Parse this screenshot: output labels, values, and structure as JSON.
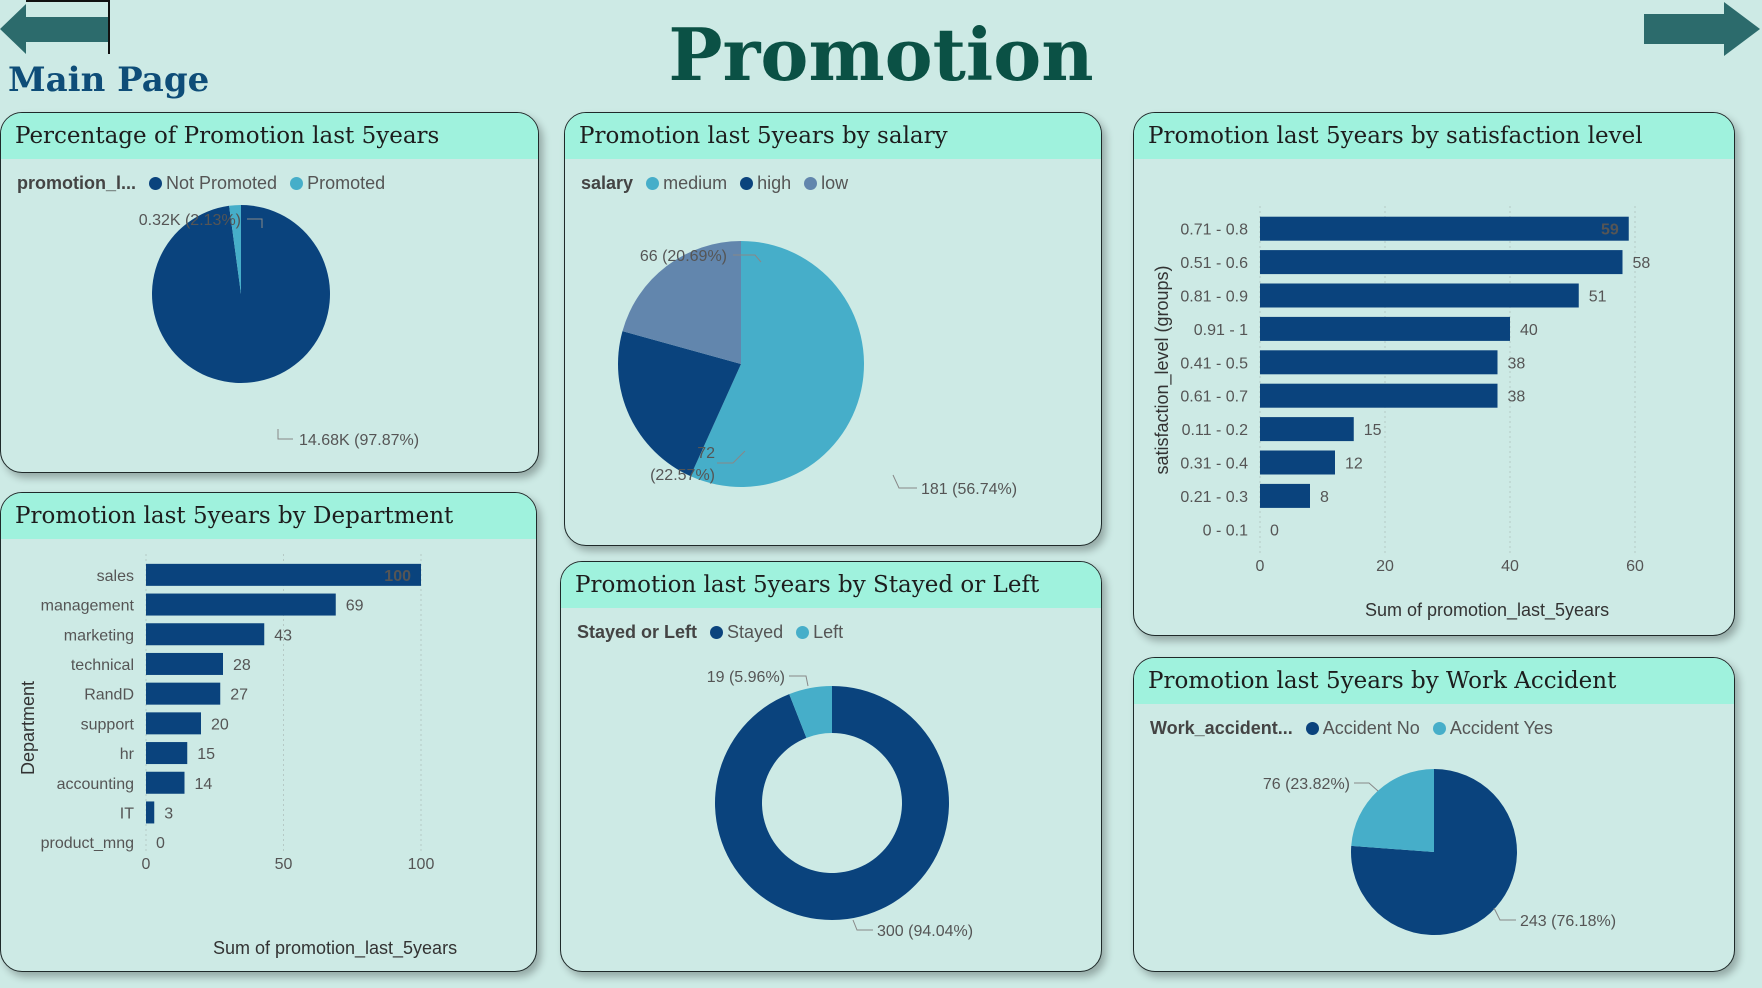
{
  "page": {
    "title": "Promotion",
    "main_link": "Main Page"
  },
  "colors": {
    "dark": "#0a437d",
    "teal": "#46aec9",
    "slate": "#6286ad",
    "header": "#9ff2dd",
    "bg": "#cdeae5"
  },
  "chart_data": [
    {
      "id": "percentage",
      "type": "pie",
      "title": "Percentage of Promotion last 5years",
      "legend_title": "promotion_l...",
      "slices": [
        {
          "name": "Not Promoted",
          "value": 14680,
          "label": "14.68K (97.87%)",
          "color": "#0a437d"
        },
        {
          "name": "Promoted",
          "value": 320,
          "label": "0.32K (2.13%)",
          "color": "#46aec9"
        }
      ]
    },
    {
      "id": "salary",
      "type": "pie",
      "title": "Promotion last 5years by salary",
      "legend_title": "salary",
      "slices": [
        {
          "name": "medium",
          "value": 181,
          "label": "181 (56.74%)",
          "color": "#46aec9"
        },
        {
          "name": "high",
          "value": 72,
          "label": "72 (22.57%)",
          "color": "#0a437d"
        },
        {
          "name": "low",
          "value": 66,
          "label": "66 (20.69%)",
          "color": "#6286ad"
        }
      ]
    },
    {
      "id": "satisfaction",
      "type": "bar",
      "orientation": "horizontal",
      "title": "Promotion last 5years by satisfaction level",
      "xlabel": "Sum of promotion_last_5years",
      "ylabel": "satisfaction_level (groups)",
      "xlim": [
        0,
        60
      ],
      "xticks": [
        0,
        20,
        40,
        60
      ],
      "categories": [
        "0.71 - 0.8",
        "0.51 - 0.6",
        "0.81 - 0.9",
        "0.91 - 1",
        "0.41 - 0.5",
        "0.61 - 0.7",
        "0.11 - 0.2",
        "0.31 - 0.4",
        "0.21 - 0.3",
        "0 - 0.1"
      ],
      "values": [
        59,
        58,
        51,
        40,
        38,
        38,
        15,
        12,
        8,
        0
      ]
    },
    {
      "id": "department",
      "type": "bar",
      "orientation": "horizontal",
      "title": "Promotion last 5years by Department",
      "xlabel": "Sum of promotion_last_5years",
      "ylabel": "Department",
      "xlim": [
        0,
        100
      ],
      "xticks": [
        0,
        50,
        100
      ],
      "categories": [
        "sales",
        "management",
        "marketing",
        "technical",
        "RandD",
        "support",
        "hr",
        "accounting",
        "IT",
        "product_mng"
      ],
      "values": [
        100,
        69,
        43,
        28,
        27,
        20,
        15,
        14,
        3,
        0
      ]
    },
    {
      "id": "stayed",
      "type": "pie",
      "donut": true,
      "title": "Promotion last 5years by Stayed or Left",
      "legend_title": "Stayed or Left",
      "slices": [
        {
          "name": "Stayed",
          "value": 300,
          "label": "300 (94.04%)",
          "color": "#0a437d"
        },
        {
          "name": "Left",
          "value": 19,
          "label": "19 (5.96%)",
          "color": "#46aec9"
        }
      ]
    },
    {
      "id": "accident",
      "type": "pie",
      "title": "Promotion last 5years by Work Accident",
      "legend_title": "Work_accident...",
      "slices": [
        {
          "name": "Accident No",
          "value": 243,
          "label": "243 (76.18%)",
          "color": "#0a437d"
        },
        {
          "name": "Accident Yes",
          "value": 76,
          "label": "76 (23.82%)",
          "color": "#46aec9"
        }
      ]
    }
  ]
}
